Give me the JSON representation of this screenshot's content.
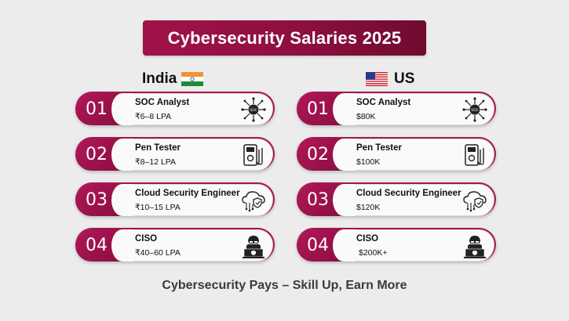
{
  "title": "Cybersecurity Salaries 2025",
  "columns": {
    "india": {
      "label": "India",
      "flag_icon": "india-flag-icon"
    },
    "us": {
      "label": "US",
      "flag_icon": "us-flag-icon"
    }
  },
  "india_items": [
    {
      "num": "01",
      "role": "SOC Analyst",
      "salary": "₹6–8 LPA",
      "icon": "soc-network-icon"
    },
    {
      "num": "02",
      "role": "Pen Tester",
      "salary": "₹8–12 LPA",
      "icon": "multimeter-icon"
    },
    {
      "num": "03",
      "role": "Cloud Security Engineer",
      "salary": "₹10–15 LPA",
      "icon": "cloud-shield-icon"
    },
    {
      "num": "04",
      "role": "CISO",
      "salary": "₹40–60 LPA",
      "icon": "hacker-laptop-icon"
    }
  ],
  "us_items": [
    {
      "num": "01",
      "role": "SOC Analyst",
      "salary": "$80K",
      "icon": "soc-network-icon"
    },
    {
      "num": "02",
      "role": "Pen Tester",
      "salary": "$100K",
      "icon": "multimeter-icon"
    },
    {
      "num": "03",
      "role": "Cloud Security Engineer",
      "salary": "$120K",
      "icon": "cloud-shield-icon"
    },
    {
      "num": "04",
      "role": "CISO",
      "salary": "$200K+",
      "icon": "hacker-laptop-icon"
    }
  ],
  "footer": "Cybersecurity Pays – Skill Up, Earn More",
  "colors": {
    "accent": "#9a1248",
    "background": "#ececec"
  }
}
